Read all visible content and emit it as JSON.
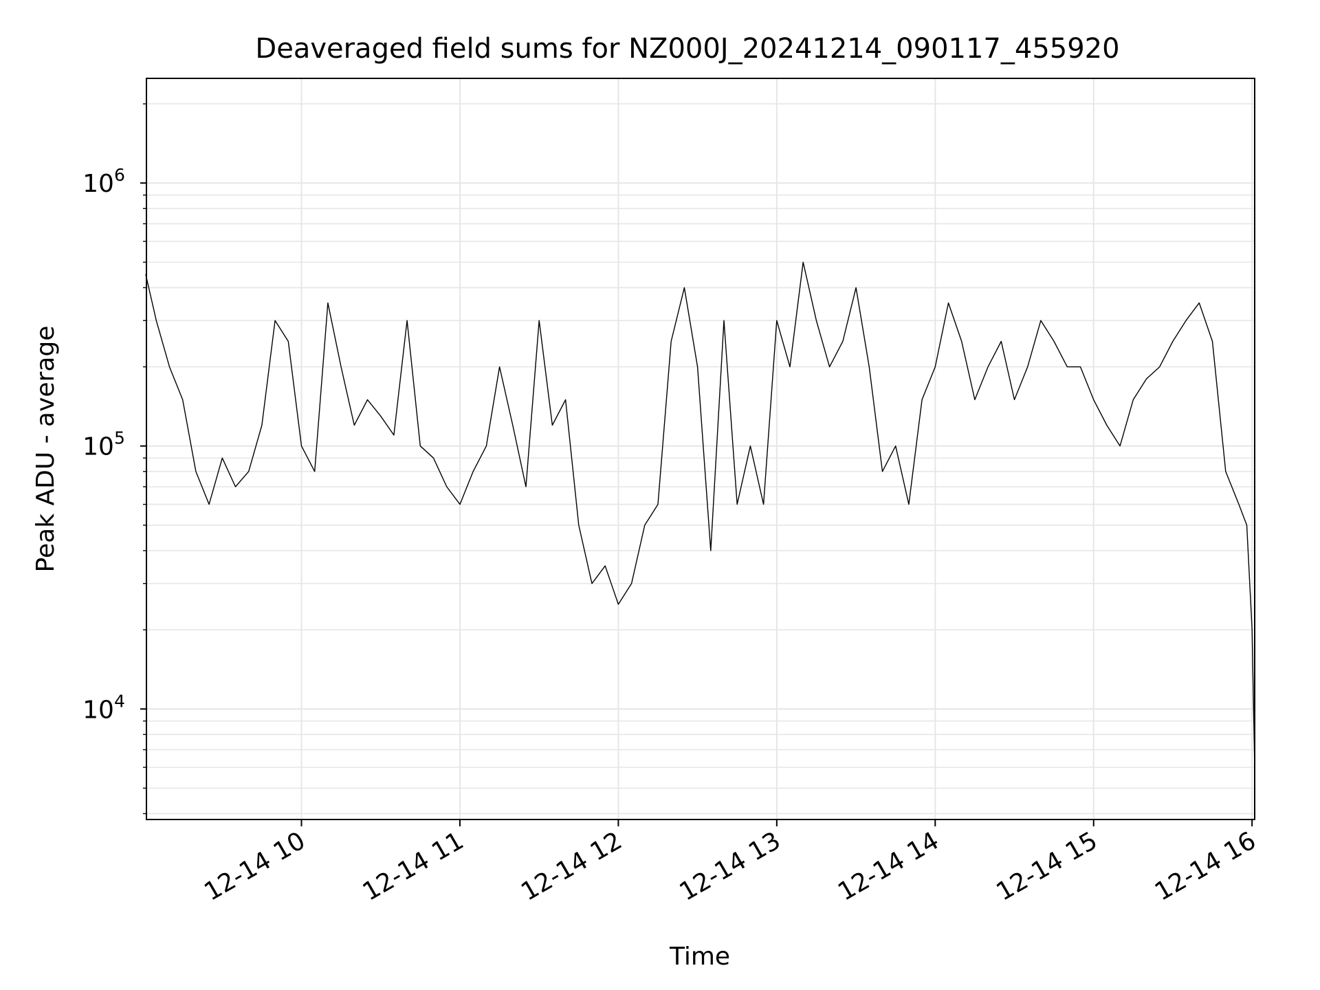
{
  "chart_data": {
    "type": "line",
    "title": "Deaveraged field sums for NZ000J_20241214_090117_455920",
    "xlabel": "Time",
    "ylabel": "Peak ADU - average",
    "yscale": "log",
    "grid": true,
    "xlim": [
      "2024-12-14 09:01:17",
      "2024-12-14 16:01:00"
    ],
    "ylim": [
      3800,
      2500000
    ],
    "x_ticks": [
      "12-14 10",
      "12-14 11",
      "12-14 12",
      "12-14 13",
      "12-14 14",
      "12-14 15",
      "12-14 16"
    ],
    "y_ticks": [
      {
        "base": "10",
        "exp": "4",
        "value": 10000
      },
      {
        "base": "10",
        "exp": "5",
        "value": 100000
      },
      {
        "base": "10",
        "exp": "6",
        "value": 1000000
      }
    ],
    "line_color": "#000000",
    "series": [
      {
        "x": [
          "2024-12-14 09:01",
          "2024-12-14 09:05",
          "2024-12-14 09:10",
          "2024-12-14 09:15",
          "2024-12-14 09:20",
          "2024-12-14 09:25",
          "2024-12-14 09:30",
          "2024-12-14 09:35",
          "2024-12-14 09:40",
          "2024-12-14 09:45",
          "2024-12-14 09:50",
          "2024-12-14 09:55",
          "2024-12-14 10:00",
          "2024-12-14 10:05",
          "2024-12-14 10:10",
          "2024-12-14 10:15",
          "2024-12-14 10:20",
          "2024-12-14 10:25",
          "2024-12-14 10:30",
          "2024-12-14 10:35",
          "2024-12-14 10:40",
          "2024-12-14 10:45",
          "2024-12-14 10:50",
          "2024-12-14 10:55",
          "2024-12-14 11:00",
          "2024-12-14 11:05",
          "2024-12-14 11:10",
          "2024-12-14 11:15",
          "2024-12-14 11:20",
          "2024-12-14 11:25",
          "2024-12-14 11:30",
          "2024-12-14 11:35",
          "2024-12-14 11:40",
          "2024-12-14 11:45",
          "2024-12-14 11:50",
          "2024-12-14 11:55",
          "2024-12-14 12:00",
          "2024-12-14 12:05",
          "2024-12-14 12:10",
          "2024-12-14 12:15",
          "2024-12-14 12:20",
          "2024-12-14 12:25",
          "2024-12-14 12:30",
          "2024-12-14 12:35",
          "2024-12-14 12:40",
          "2024-12-14 12:45",
          "2024-12-14 12:50",
          "2024-12-14 12:55",
          "2024-12-14 13:00",
          "2024-12-14 13:05",
          "2024-12-14 13:10",
          "2024-12-14 13:15",
          "2024-12-14 13:20",
          "2024-12-14 13:25",
          "2024-12-14 13:30",
          "2024-12-14 13:35",
          "2024-12-14 13:40",
          "2024-12-14 13:45",
          "2024-12-14 13:50",
          "2024-12-14 13:55",
          "2024-12-14 14:00",
          "2024-12-14 14:05",
          "2024-12-14 14:10",
          "2024-12-14 14:15",
          "2024-12-14 14:20",
          "2024-12-14 14:25",
          "2024-12-14 14:30",
          "2024-12-14 14:35",
          "2024-12-14 14:40",
          "2024-12-14 14:45",
          "2024-12-14 14:50",
          "2024-12-14 14:55",
          "2024-12-14 15:00",
          "2024-12-14 15:05",
          "2024-12-14 15:10",
          "2024-12-14 15:15",
          "2024-12-14 15:20",
          "2024-12-14 15:25",
          "2024-12-14 15:30",
          "2024-12-14 15:35",
          "2024-12-14 15:40",
          "2024-12-14 15:45",
          "2024-12-14 15:50",
          "2024-12-14 15:55",
          "2024-12-14 15:58",
          "2024-12-14 16:00",
          "2024-12-14 16:01"
        ],
        "y": [
          450000,
          300000,
          200000,
          150000,
          80000,
          60000,
          90000,
          70000,
          80000,
          120000,
          300000,
          250000,
          100000,
          80000,
          350000,
          200000,
          120000,
          150000,
          130000,
          110000,
          300000,
          100000,
          90000,
          70000,
          60000,
          80000,
          100000,
          200000,
          120000,
          70000,
          300000,
          120000,
          150000,
          50000,
          30000,
          35000,
          25000,
          30000,
          50000,
          60000,
          250000,
          400000,
          200000,
          40000,
          300000,
          60000,
          100000,
          60000,
          300000,
          200000,
          500000,
          300000,
          200000,
          250000,
          400000,
          200000,
          80000,
          100000,
          60000,
          150000,
          200000,
          350000,
          250000,
          150000,
          200000,
          250000,
          150000,
          200000,
          300000,
          250000,
          200000,
          200000,
          150000,
          120000,
          100000,
          150000,
          180000,
          200000,
          250000,
          300000,
          350000,
          250000,
          80000,
          60000,
          50000,
          20000,
          6000
        ]
      }
    ]
  }
}
